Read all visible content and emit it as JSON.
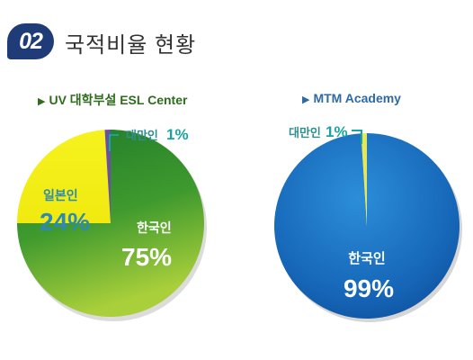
{
  "header": {
    "number": "02",
    "title": "국적비율 현황"
  },
  "chart_data": [
    {
      "type": "pie",
      "title": "UV 대학부설 ESL Center",
      "colors": [
        "#2e8b2a",
        "#f3ef1a",
        "#6b4fa0"
      ],
      "slices": [
        {
          "label": "한국인",
          "value": 75,
          "value_text": "75%"
        },
        {
          "label": "일본인",
          "value": 24,
          "value_text": "24%"
        },
        {
          "label": "대만인",
          "value": 1,
          "value_text": "1%"
        }
      ]
    },
    {
      "type": "pie",
      "title": "MTM Academy",
      "colors": [
        "#1a6fc0",
        "#e6e85a"
      ],
      "slices": [
        {
          "label": "한국인",
          "value": 99,
          "value_text": "99%"
        },
        {
          "label": "대만인",
          "value": 1,
          "value_text": "1%"
        }
      ]
    }
  ]
}
